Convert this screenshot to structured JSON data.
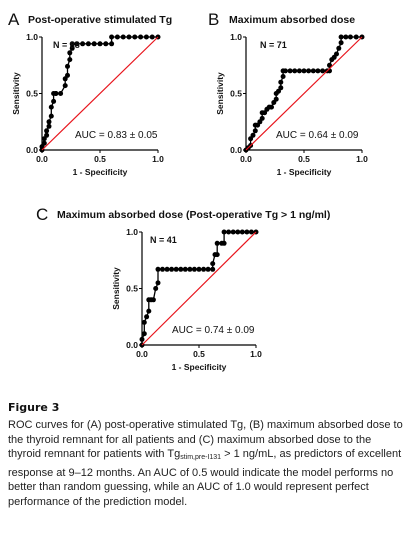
{
  "chart_data": [
    {
      "panel_letter": "A",
      "type": "line",
      "title": "Post-operative stimulated Tg",
      "xlabel": "1 - Specificity",
      "ylabel": "Sensitivity",
      "xlim": [
        0,
        1
      ],
      "ylim": [
        0,
        1
      ],
      "xticks": [
        "0.0",
        "0.5",
        "1.0"
      ],
      "yticks": [
        "0.0",
        "0.5",
        "1.0"
      ],
      "n_label": "N = 88",
      "auc_label": "AUC = 0.83 ± 0.05",
      "series": [
        {
          "color": "#000000",
          "x": [
            0,
            0,
            0.02,
            0.02,
            0.04,
            0.04,
            0.06,
            0.06,
            0.08,
            0.08,
            0.1,
            0.1,
            0.12,
            0.12,
            0.16,
            0.2,
            0.2,
            0.22,
            0.22,
            0.24,
            0.24,
            0.26,
            0.26,
            0.3,
            0.35,
            0.4,
            0.45,
            0.5,
            0.55,
            0.6,
            0.6,
            0.65,
            0.7,
            0.75,
            0.8,
            0.85,
            0.9,
            0.95,
            1.0
          ],
          "y": [
            0,
            0.03,
            0.06,
            0.1,
            0.13,
            0.17,
            0.21,
            0.25,
            0.3,
            0.38,
            0.43,
            0.5,
            0.5,
            0.5,
            0.5,
            0.57,
            0.63,
            0.66,
            0.74,
            0.8,
            0.86,
            0.9,
            0.94,
            0.94,
            0.94,
            0.94,
            0.94,
            0.94,
            0.94,
            0.94,
            1.0,
            1.0,
            1.0,
            1.0,
            1.0,
            1.0,
            1.0,
            1.0,
            1.0
          ]
        },
        {
          "color": "#e8141c",
          "x": [
            0,
            1
          ],
          "y": [
            0,
            1
          ]
        }
      ]
    },
    {
      "panel_letter": "B",
      "type": "line",
      "title": "Maximum absorbed dose",
      "xlabel": "1 - Specificity",
      "ylabel": "Sensitivity",
      "xlim": [
        0,
        1
      ],
      "ylim": [
        0,
        1
      ],
      "xticks": [
        "0.0",
        "0.5",
        "1.0"
      ],
      "yticks": [
        "0.0",
        "0.5",
        "1.0"
      ],
      "n_label": "N = 71",
      "auc_label": "AUC = 0.64 ± 0.09",
      "series": [
        {
          "color": "#000000",
          "x": [
            0,
            0.02,
            0.04,
            0.04,
            0.06,
            0.08,
            0.08,
            0.1,
            0.12,
            0.14,
            0.14,
            0.16,
            0.18,
            0.2,
            0.22,
            0.24,
            0.26,
            0.26,
            0.28,
            0.3,
            0.3,
            0.32,
            0.32,
            0.34,
            0.38,
            0.42,
            0.46,
            0.5,
            0.54,
            0.58,
            0.62,
            0.66,
            0.7,
            0.72,
            0.72,
            0.74,
            0.76,
            0.78,
            0.8,
            0.82,
            0.82,
            0.86,
            0.9,
            0.95,
            1.0
          ],
          "y": [
            0,
            0.02,
            0.04,
            0.1,
            0.13,
            0.17,
            0.22,
            0.22,
            0.25,
            0.28,
            0.33,
            0.33,
            0.36,
            0.38,
            0.38,
            0.42,
            0.45,
            0.5,
            0.52,
            0.55,
            0.6,
            0.65,
            0.7,
            0.7,
            0.7,
            0.7,
            0.7,
            0.7,
            0.7,
            0.7,
            0.7,
            0.7,
            0.7,
            0.7,
            0.75,
            0.8,
            0.82,
            0.85,
            0.9,
            0.95,
            1.0,
            1.0,
            1.0,
            1.0,
            1.0
          ]
        },
        {
          "color": "#e8141c",
          "x": [
            0,
            1
          ],
          "y": [
            0,
            1
          ]
        }
      ]
    },
    {
      "panel_letter": "C",
      "type": "line",
      "title": "Maximum absorbed dose (Post-operative Tg > 1 ng/ml)",
      "xlabel": "1 - Specificity",
      "ylabel": "Sensitivity",
      "xlim": [
        0,
        1
      ],
      "ylim": [
        0,
        1
      ],
      "xticks": [
        "0.0",
        "0.5",
        "1.0"
      ],
      "yticks": [
        "0.0",
        "0.5",
        "1.0"
      ],
      "n_label": "N = 41",
      "auc_label": "AUC = 0.74 ± 0.09",
      "series": [
        {
          "color": "#000000",
          "x": [
            0,
            0,
            0.02,
            0.02,
            0.04,
            0.06,
            0.06,
            0.08,
            0.1,
            0.12,
            0.14,
            0.14,
            0.18,
            0.22,
            0.26,
            0.3,
            0.34,
            0.38,
            0.42,
            0.46,
            0.5,
            0.54,
            0.58,
            0.62,
            0.62,
            0.64,
            0.66,
            0.66,
            0.7,
            0.72,
            0.72,
            0.76,
            0.8,
            0.84,
            0.88,
            0.92,
            0.96,
            1.0
          ],
          "y": [
            0,
            0.05,
            0.1,
            0.2,
            0.25,
            0.3,
            0.4,
            0.4,
            0.4,
            0.5,
            0.55,
            0.67,
            0.67,
            0.67,
            0.67,
            0.67,
            0.67,
            0.67,
            0.67,
            0.67,
            0.67,
            0.67,
            0.67,
            0.67,
            0.72,
            0.8,
            0.8,
            0.9,
            0.9,
            0.9,
            1.0,
            1.0,
            1.0,
            1.0,
            1.0,
            1.0,
            1.0,
            1.0
          ]
        },
        {
          "color": "#e8141c",
          "x": [
            0,
            1
          ],
          "y": [
            0,
            1
          ]
        }
      ]
    }
  ],
  "figure": {
    "title": "Figure 3",
    "caption_part1": "ROC curves for (A) post-operative stimulated Tg, (B) maximum absorbed dose to the thyroid remnant for all patients and (C) maximum absorbed dose to the thyroid remnant for patients with Tg",
    "caption_sub": "stim,pre-I131",
    "caption_part2": " > 1 ng/mL, as predictors of excellent response at 9–12 months. An AUC of 0.5 would indicate the model performs no better than random guessing, while an AUC of 1.0 would represent perfect performance of the prediction model."
  }
}
